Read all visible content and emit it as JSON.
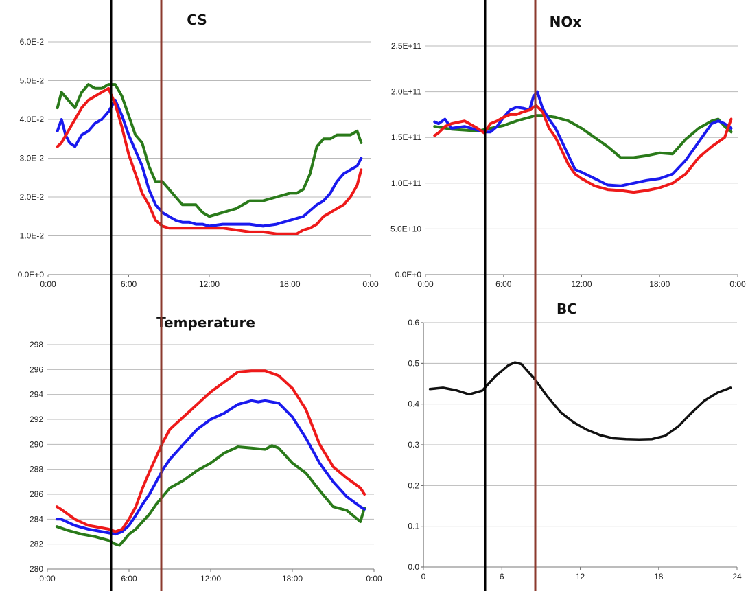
{
  "chart_data": [
    {
      "type": "line",
      "title": "CS",
      "xlabel": "",
      "ylabel": "",
      "x_ticks": [
        "0:00",
        "6:00",
        "12:00",
        "18:00",
        "0:00"
      ],
      "y_ticks": [
        "0.0E+0",
        "1.0E-2",
        "2.0E-2",
        "3.0E-2",
        "4.0E-2",
        "5.0E-2",
        "6.0E-2"
      ],
      "xlim": [
        0,
        24
      ],
      "ylim": [
        0,
        0.06
      ],
      "grid": "horizontal",
      "colors": [
        "#2a7a1a",
        "#1a1aee",
        "#ee1a1a"
      ],
      "series": [
        {
          "x": [
            0.7,
            1,
            1.5,
            2,
            2.5,
            3,
            3.5,
            4,
            4.5,
            5,
            5.5,
            6,
            6.5,
            7,
            7.5,
            8,
            8.5,
            9,
            9.5,
            10,
            10.5,
            11,
            11.5,
            12,
            13,
            14,
            15,
            16,
            17,
            18,
            18.5,
            19,
            19.5,
            20,
            20.5,
            21,
            21.5,
            22,
            22.5,
            23,
            23.3
          ],
          "y": [
            0.043,
            0.047,
            0.045,
            0.043,
            0.047,
            0.049,
            0.048,
            0.048,
            0.049,
            0.049,
            0.046,
            0.041,
            0.036,
            0.034,
            0.028,
            0.024,
            0.024,
            0.022,
            0.02,
            0.018,
            0.018,
            0.018,
            0.016,
            0.015,
            0.016,
            0.017,
            0.019,
            0.019,
            0.02,
            0.021,
            0.021,
            0.022,
            0.026,
            0.033,
            0.035,
            0.035,
            0.036,
            0.036,
            0.036,
            0.037,
            0.034
          ]
        },
        {
          "x": [
            0.7,
            1,
            1.3,
            1.6,
            2,
            2.5,
            3,
            3.5,
            4,
            4.5,
            5,
            5.5,
            6,
            6.5,
            7,
            7.5,
            8,
            8.5,
            9,
            9.5,
            10,
            10.5,
            11,
            11.5,
            12,
            13,
            14,
            15,
            16,
            17,
            18,
            19,
            20,
            20.5,
            21,
            21.5,
            22,
            22.5,
            23,
            23.3
          ],
          "y": [
            0.037,
            0.04,
            0.036,
            0.034,
            0.033,
            0.036,
            0.037,
            0.039,
            0.04,
            0.042,
            0.045,
            0.041,
            0.036,
            0.032,
            0.028,
            0.022,
            0.018,
            0.016,
            0.015,
            0.014,
            0.0135,
            0.0135,
            0.013,
            0.013,
            0.0125,
            0.013,
            0.013,
            0.013,
            0.0125,
            0.013,
            0.014,
            0.015,
            0.018,
            0.019,
            0.021,
            0.024,
            0.026,
            0.027,
            0.028,
            0.03
          ]
        },
        {
          "x": [
            0.7,
            1,
            1.5,
            2,
            2.5,
            3,
            3.5,
            4,
            4.5,
            5,
            5.5,
            6,
            6.5,
            7,
            7.5,
            8,
            8.5,
            9,
            9.5,
            10,
            11,
            12,
            13,
            14,
            15,
            16,
            17,
            18,
            18.5,
            19,
            19.5,
            20,
            20.5,
            21,
            21.5,
            22,
            22.5,
            23,
            23.3
          ],
          "y": [
            0.033,
            0.034,
            0.037,
            0.04,
            0.043,
            0.045,
            0.046,
            0.047,
            0.048,
            0.044,
            0.038,
            0.031,
            0.026,
            0.021,
            0.018,
            0.014,
            0.0125,
            0.012,
            0.012,
            0.012,
            0.012,
            0.012,
            0.012,
            0.0115,
            0.011,
            0.011,
            0.0105,
            0.0105,
            0.0105,
            0.0115,
            0.012,
            0.013,
            0.015,
            0.016,
            0.017,
            0.018,
            0.02,
            0.023,
            0.027
          ]
        }
      ]
    },
    {
      "type": "line",
      "title": "NOx",
      "xlabel": "",
      "ylabel": "",
      "x_ticks": [
        "0:00",
        "6:00",
        "12:00",
        "18:00",
        "0:00"
      ],
      "y_ticks": [
        "0.0E+0",
        "5.0E+10",
        "1.0E+11",
        "1.5E+11",
        "2.0E+11",
        "2.5E+11"
      ],
      "xlim": [
        0,
        24
      ],
      "ylim": [
        0,
        250000000000
      ],
      "grid": "horizontal",
      "colors": [
        "#2a7a1a",
        "#1a1aee",
        "#ee1a1a"
      ],
      "series": [
        {
          "x": [
            0.7,
            2,
            3,
            4,
            5,
            6,
            7,
            8,
            8.5,
            9,
            10,
            11,
            12,
            13,
            14,
            15,
            16,
            17,
            18,
            19,
            20,
            21,
            22,
            22.5,
            23,
            23.5
          ],
          "y": [
            162000000000,
            159000000000,
            158000000000,
            157000000000,
            160000000000,
            163000000000,
            168000000000,
            172000000000,
            174000000000,
            174000000000,
            172000000000,
            168000000000,
            160000000000,
            150000000000,
            140000000000,
            128000000000,
            128000000000,
            130000000000,
            133000000000,
            132000000000,
            148000000000,
            160000000000,
            168000000000,
            170000000000,
            162000000000,
            156000000000
          ]
        },
        {
          "x": [
            0.7,
            1,
            1.5,
            2,
            3,
            4,
            4.5,
            5,
            5.5,
            6,
            6.5,
            7,
            7.5,
            8,
            8.3,
            8.6,
            9,
            9.5,
            10,
            10.5,
            11,
            11.5,
            12,
            13,
            14,
            15,
            16,
            17,
            18,
            19,
            20,
            21,
            21.5,
            22,
            22.5,
            23,
            23.5
          ],
          "y": [
            167000000000,
            165000000000,
            170000000000,
            160000000000,
            162000000000,
            158000000000,
            156000000000,
            156000000000,
            162000000000,
            172000000000,
            180000000000,
            183000000000,
            182000000000,
            180000000000,
            195000000000,
            200000000000,
            182000000000,
            170000000000,
            160000000000,
            145000000000,
            130000000000,
            115000000000,
            112000000000,
            105000000000,
            98000000000,
            97000000000,
            100000000000,
            103000000000,
            105000000000,
            110000000000,
            125000000000,
            145000000000,
            155000000000,
            165000000000,
            168000000000,
            165000000000,
            160000000000
          ]
        },
        {
          "x": [
            0.7,
            1,
            1.5,
            2,
            3,
            4,
            4.5,
            5,
            5.5,
            6,
            6.5,
            7,
            7.5,
            8,
            8.5,
            9,
            9.5,
            10,
            10.5,
            11,
            11.5,
            12,
            13,
            14,
            15,
            16,
            17,
            18,
            19,
            20,
            21,
            22,
            22.5,
            23,
            23.5
          ],
          "y": [
            152000000000,
            155000000000,
            162000000000,
            165000000000,
            168000000000,
            160000000000,
            155000000000,
            165000000000,
            168000000000,
            172000000000,
            175000000000,
            175000000000,
            178000000000,
            180000000000,
            185000000000,
            178000000000,
            160000000000,
            150000000000,
            135000000000,
            120000000000,
            110000000000,
            105000000000,
            97000000000,
            93000000000,
            92000000000,
            90000000000,
            92000000000,
            95000000000,
            100000000000,
            110000000000,
            128000000000,
            140000000000,
            145000000000,
            150000000000,
            170000000000
          ]
        }
      ]
    },
    {
      "type": "line",
      "title": "Temperature",
      "xlabel": "",
      "ylabel": "",
      "x_ticks": [
        "0:00",
        "6:00",
        "12:00",
        "18:00",
        "0:00"
      ],
      "y_ticks": [
        "280",
        "282",
        "284",
        "286",
        "288",
        "290",
        "292",
        "294",
        "296",
        "298"
      ],
      "xlim": [
        0,
        24
      ],
      "ylim": [
        280,
        298
      ],
      "grid": "horizontal",
      "colors": [
        "#2a7a1a",
        "#1a1aee",
        "#ee1a1a"
      ],
      "series": [
        {
          "x": [
            0.7,
            1.5,
            2.5,
            3.5,
            4.5,
            5,
            5.3,
            5.7,
            6,
            6.5,
            7,
            7.5,
            8,
            9,
            10,
            11,
            12,
            13,
            14,
            15,
            16,
            16.5,
            17,
            18,
            19,
            20,
            21,
            22,
            23,
            23.3
          ],
          "y": [
            283.4,
            283.1,
            282.8,
            282.6,
            282.3,
            282,
            281.9,
            282.4,
            282.8,
            283.2,
            283.8,
            284.4,
            285.2,
            286.5,
            287.1,
            287.9,
            288.5,
            289.3,
            289.8,
            289.7,
            289.6,
            289.9,
            289.7,
            288.5,
            287.7,
            286.3,
            285,
            284.7,
            283.8,
            284.9
          ]
        },
        {
          "x": [
            0.7,
            1,
            2,
            3,
            4,
            5,
            5.5,
            6,
            6.5,
            7,
            7.5,
            8,
            8.5,
            9,
            10,
            11,
            12,
            13,
            14,
            15,
            15.5,
            16,
            16.5,
            17,
            18,
            19,
            20,
            21,
            22,
            23,
            23.3
          ],
          "y": [
            284,
            284,
            283.5,
            283.2,
            283,
            282.8,
            283,
            283.5,
            284.3,
            285.2,
            286,
            287,
            288,
            288.8,
            290,
            291.2,
            292,
            292.5,
            293.2,
            293.5,
            293.4,
            293.5,
            293.4,
            293.3,
            292.2,
            290.5,
            288.5,
            287,
            285.8,
            285,
            284.8
          ]
        },
        {
          "x": [
            0.7,
            1,
            2,
            3,
            4,
            4.5,
            5,
            5.5,
            6,
            6.5,
            7,
            7.5,
            8,
            8.5,
            9,
            10,
            11,
            12,
            13,
            14,
            15,
            16,
            17,
            18,
            19,
            20,
            21,
            22,
            23,
            23.3
          ],
          "y": [
            285,
            284.8,
            284,
            283.5,
            283.3,
            283.2,
            283,
            283.2,
            284,
            285,
            286.5,
            287.8,
            289,
            290.2,
            291.2,
            292.2,
            293.2,
            294.2,
            295,
            295.8,
            295.9,
            295.9,
            295.5,
            294.5,
            292.8,
            290,
            288.2,
            287.3,
            286.5,
            286
          ]
        }
      ]
    },
    {
      "type": "line",
      "title": "BC",
      "xlabel": "",
      "ylabel": "",
      "x_ticks": [
        "0",
        "6",
        "12",
        "18",
        "24"
      ],
      "y_ticks": [
        "0.0",
        "0.1",
        "0.2",
        "0.3",
        "0.4",
        "0.5",
        "0.6"
      ],
      "xlim": [
        0,
        24
      ],
      "ylim": [
        0,
        0.6
      ],
      "grid": "horizontal",
      "colors": [
        "#111111"
      ],
      "series": [
        {
          "x": [
            0.5,
            1.5,
            2.5,
            3.5,
            4.5,
            5.5,
            6.5,
            7,
            7.5,
            8.5,
            9.5,
            10.5,
            11.5,
            12.5,
            13.5,
            14.5,
            15.5,
            16.5,
            17.5,
            18.5,
            19.5,
            20.5,
            21.5,
            22.5,
            23.5
          ],
          "y": [
            0.437,
            0.44,
            0.434,
            0.424,
            0.433,
            0.468,
            0.495,
            0.502,
            0.498,
            0.462,
            0.418,
            0.38,
            0.355,
            0.337,
            0.324,
            0.316,
            0.314,
            0.313,
            0.314,
            0.322,
            0.345,
            0.378,
            0.408,
            0.428,
            0.44
          ]
        }
      ]
    }
  ]
}
